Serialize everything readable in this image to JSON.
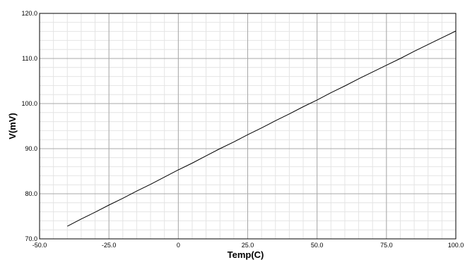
{
  "chart_data": {
    "type": "line",
    "title": "",
    "xlabel": "Temp(C)",
    "ylabel": "V(mV)",
    "xlim": [
      -50,
      100
    ],
    "ylim": [
      70,
      120
    ],
    "x_ticks": [
      "-50.0",
      "-25.0",
      "0",
      "25.0",
      "50.0",
      "75.0",
      "100.0"
    ],
    "y_ticks": [
      "70.0",
      "80.0",
      "90.0",
      "100.0",
      "110.0",
      "120.0"
    ],
    "grid": true,
    "legend": "none",
    "series": [
      {
        "color": "#000000",
        "x": [
          -40,
          -35,
          -30,
          -25,
          -20,
          -15,
          -10,
          -5,
          0,
          5,
          10,
          15,
          20,
          25,
          30,
          35,
          40,
          45,
          50,
          55,
          60,
          65,
          70,
          75,
          80,
          85,
          90,
          95,
          100
        ],
        "y": [
          72.8,
          74.4,
          75.9,
          77.5,
          79.0,
          80.6,
          82.1,
          83.7,
          85.3,
          86.8,
          88.4,
          90.0,
          91.5,
          93.1,
          94.6,
          96.2,
          97.7,
          99.3,
          100.8,
          102.4,
          103.9,
          105.5,
          107.0,
          108.5,
          110.0,
          111.6,
          113.1,
          114.6,
          116.1
        ]
      }
    ]
  }
}
